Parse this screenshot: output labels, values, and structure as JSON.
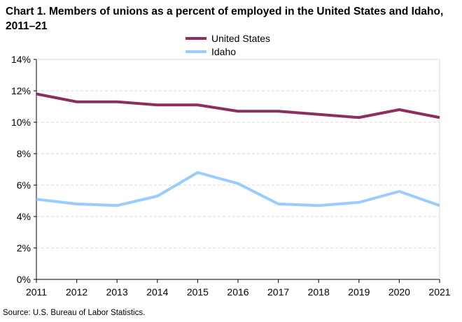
{
  "chart_data": {
    "type": "line",
    "title": "Chart 1. Members of unions as a percent of employed in the United States and Idaho, 2011–21",
    "categories": [
      "2011",
      "2012",
      "2013",
      "2014",
      "2015",
      "2016",
      "2017",
      "2018",
      "2019",
      "2020",
      "2021"
    ],
    "series": [
      {
        "name": "United States",
        "color": "#8B2F5E",
        "values": [
          11.8,
          11.3,
          11.3,
          11.1,
          11.1,
          10.7,
          10.7,
          10.5,
          10.3,
          10.8,
          10.3
        ]
      },
      {
        "name": "Idaho",
        "color": "#99CCFF",
        "values": [
          5.1,
          4.8,
          4.7,
          5.3,
          6.8,
          6.1,
          4.8,
          4.7,
          4.9,
          5.6,
          4.7
        ]
      }
    ],
    "ylim": [
      0,
      14
    ],
    "y_ticks": [
      "0%",
      "2%",
      "4%",
      "6%",
      "8%",
      "10%",
      "12%",
      "14%"
    ],
    "y_tick_values": [
      0,
      2,
      4,
      6,
      8,
      10,
      12,
      14
    ],
    "xlabel": "",
    "ylabel": "",
    "grid": true,
    "legend_position": "top-center"
  },
  "source": "Source:  U.S. Bureau  of Labor Statistics."
}
